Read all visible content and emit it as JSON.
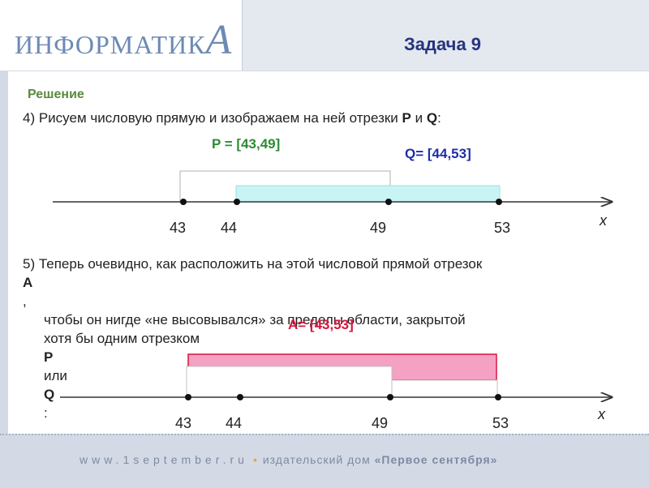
{
  "header": {
    "logo_text": "ИНФОРМАТИК",
    "logo_big_letter": "А",
    "task_title": "Задача 9"
  },
  "solution_label": "Решение",
  "step4": {
    "prefix": "4) Рисуем числовую прямую и изображаем на ней отрезки ",
    "p": "P",
    "and": " и ",
    "q": "Q",
    "colon": ":"
  },
  "diagram1": {
    "label_p": "P = [43,49]",
    "label_q": "Q= [44,53]",
    "ticks": [
      "43",
      "44",
      "49",
      "53"
    ],
    "axis_label": "x"
  },
  "step5": {
    "line1_prefix": "5) Теперь очевидно, как расположить на этой числовой прямой отрезок ",
    "line1_a": "A",
    "line1_end": ",",
    "line2": "чтобы он нигде «не высовывался» за пределы области, закрытой",
    "line3_prefix": "хотя бы одним отрезком ",
    "line3_p": "P",
    "line3_or": " или ",
    "line3_q": "Q",
    "line3_end": ":"
  },
  "diagram2": {
    "label_a": "A= [43,53]",
    "ticks": [
      "43",
      "44",
      "49",
      "53"
    ],
    "axis_label": "x"
  },
  "footer": {
    "url": "www.1september.ru",
    "sep": "•",
    "publisher_prefix": "издательский дом ",
    "publisher_name": "«Первое сентября»"
  },
  "colors": {
    "title": "#26347e",
    "solution": "#5b8a3e",
    "p": "#2b8c33",
    "q": "#1e2ea8",
    "a": "#d6173f",
    "q_fill": "#c8f4f6",
    "a_fill": "#f4a1c3"
  }
}
